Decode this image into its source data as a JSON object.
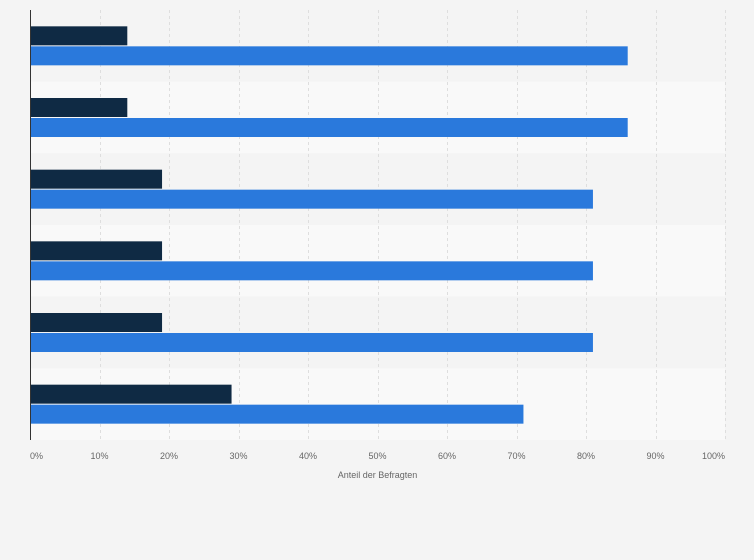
{
  "chart_data": {
    "type": "bar",
    "orientation": "horizontal",
    "categories": [
      "",
      "",
      "",
      "",
      "",
      ""
    ],
    "series": [
      {
        "values": [
          14,
          14,
          19,
          19,
          19,
          29
        ],
        "color": "#0f2a44"
      },
      {
        "values": [
          86,
          86,
          81,
          81,
          81,
          71
        ],
        "color": "#2a79dc"
      }
    ],
    "xlabel": "Anteil der Befragten",
    "ylabel": "",
    "xlim": [
      0,
      100
    ],
    "x_ticks": [
      "0%",
      "10%",
      "20%",
      "30%",
      "40%",
      "50%",
      "60%",
      "70%",
      "80%",
      "90%",
      "100%"
    ],
    "grid": true,
    "legend": "none"
  },
  "colors": {
    "background": "#f4f4f4",
    "band_light": "#f9f9f9",
    "band_dark": "#f4f4f4",
    "gridline": "#dedede",
    "axis": "#333333",
    "text": "#666666"
  }
}
